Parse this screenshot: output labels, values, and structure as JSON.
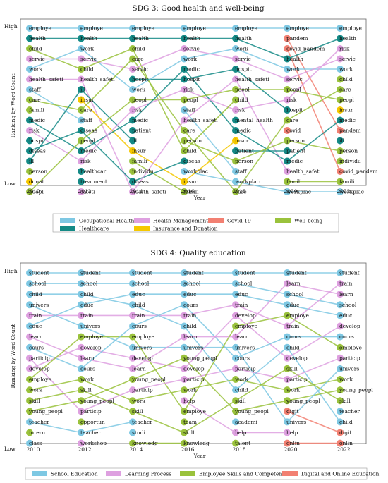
{
  "chart_data": [
    {
      "type": "bump",
      "title": "SDG 3: Good health and well-being",
      "xlabel": "Year",
      "ylabel": "Ranking by Word Count",
      "ytop": "High",
      "ybottom": "Low",
      "years": [
        "2010",
        "2012",
        "2014",
        "2016",
        "2018",
        "2020",
        "2022"
      ],
      "legend_position": "bottom",
      "series": [
        {
          "name": "Occupational Health",
          "color": "#7ec8e3"
        },
        {
          "name": "Healthcare",
          "color": "#148a86"
        },
        {
          "name": "Covid-19",
          "color": "#f28072"
        },
        {
          "name": "Insurance and Donation",
          "color": "#f5c800"
        },
        {
          "name": "Health Management",
          "color": "#dea0e0"
        },
        {
          "name": "Well-being",
          "color": "#9ac23c"
        }
      ],
      "columns": [
        [
          [
            "employe",
            0
          ],
          [
            "health",
            1
          ],
          [
            "child",
            5
          ],
          [
            "servic",
            4
          ],
          [
            "work",
            0
          ],
          [
            "health_safeti",
            4
          ],
          [
            "staff",
            0
          ],
          [
            "care",
            5
          ],
          [
            "famili",
            5
          ],
          [
            "medic",
            1
          ],
          [
            "risk",
            4
          ],
          [
            "hospit",
            1
          ],
          [
            "diseas",
            1
          ],
          [
            "ill",
            1
          ],
          [
            "person",
            5
          ],
          [
            "donat",
            3
          ],
          [
            "peopl",
            5
          ]
        ],
        [
          [
            "employe",
            0
          ],
          [
            "health",
            1
          ],
          [
            "work",
            0
          ],
          [
            "servic",
            4
          ],
          [
            "child",
            5
          ],
          [
            "health_safeti",
            4
          ],
          [
            "ill",
            1
          ],
          [
            "insur",
            3
          ],
          [
            "care",
            5
          ],
          [
            "staff",
            0
          ],
          [
            "diseas",
            1
          ],
          [
            "peopl",
            5
          ],
          [
            "medic",
            1
          ],
          [
            "risk",
            4
          ],
          [
            "healthcar",
            1
          ],
          [
            "treatment",
            1
          ],
          [
            "safeti",
            4
          ]
        ],
        [
          [
            "employe",
            0
          ],
          [
            "health",
            1
          ],
          [
            "child",
            5
          ],
          [
            "care",
            5
          ],
          [
            "servic",
            4
          ],
          [
            "hospit",
            1
          ],
          [
            "work",
            0
          ],
          [
            "peopl",
            5
          ],
          [
            "risk",
            4
          ],
          [
            "medic",
            1
          ],
          [
            "patient",
            1
          ],
          [
            "ill",
            1
          ],
          [
            "insur",
            3
          ],
          [
            "famili",
            5
          ],
          [
            "individu",
            5
          ],
          [
            "diseas",
            1
          ],
          [
            "health_safeti",
            4
          ]
        ],
        [
          [
            "employe",
            0
          ],
          [
            "health",
            1
          ],
          [
            "servic",
            4
          ],
          [
            "work",
            0
          ],
          [
            "medic",
            1
          ],
          [
            "hospit",
            1
          ],
          [
            "risk",
            4
          ],
          [
            "peopl",
            5
          ],
          [
            "staff",
            0
          ],
          [
            "health_safeti",
            4
          ],
          [
            "care",
            5
          ],
          [
            "person",
            5
          ],
          [
            "child",
            5
          ],
          [
            "diseas",
            1
          ],
          [
            "workplac",
            0
          ],
          [
            "insur",
            3
          ],
          [
            "famili",
            5
          ]
        ],
        [
          [
            "employe",
            0
          ],
          [
            "health",
            1
          ],
          [
            "work",
            0
          ],
          [
            "servic",
            4
          ],
          [
            "hospit",
            1
          ],
          [
            "health_safeti",
            4
          ],
          [
            "peopl",
            5
          ],
          [
            "child",
            5
          ],
          [
            "risk",
            4
          ],
          [
            "mental_health",
            1
          ],
          [
            "medic",
            1
          ],
          [
            "insur",
            3
          ],
          [
            "patient",
            1
          ],
          [
            "person",
            5
          ],
          [
            "staff",
            0
          ],
          [
            "workplac",
            0
          ],
          [
            "care",
            5
          ]
        ],
        [
          [
            "employe",
            0
          ],
          [
            "pandem",
            2
          ],
          [
            "covid_pandem",
            2
          ],
          [
            "health",
            1
          ],
          [
            "work",
            0
          ],
          [
            "servic",
            4
          ],
          [
            "peopl",
            5
          ],
          [
            "risk",
            4
          ],
          [
            "hospit",
            1
          ],
          [
            "care",
            5
          ],
          [
            "covid",
            2
          ],
          [
            "person",
            5
          ],
          [
            "patient",
            1
          ],
          [
            "medic",
            1
          ],
          [
            "health_safeti",
            4
          ],
          [
            "famili",
            5
          ],
          [
            "workplac",
            0
          ]
        ],
        [
          [
            "employe",
            0
          ],
          [
            "health",
            1
          ],
          [
            "risk",
            4
          ],
          [
            "servic",
            4
          ],
          [
            "work",
            0
          ],
          [
            "child",
            5
          ],
          [
            "care",
            5
          ],
          [
            "peopl",
            5
          ],
          [
            "insur",
            3
          ],
          [
            "medic",
            1
          ],
          [
            "pandem",
            2
          ],
          [
            "ill",
            1
          ],
          [
            "person",
            5
          ],
          [
            "individu",
            5
          ],
          [
            "covid_pandem",
            2
          ],
          [
            "famili",
            5
          ],
          [
            "workplac",
            0
          ]
        ]
      ]
    },
    {
      "type": "bump",
      "title": "SDG 4: Quality education",
      "xlabel": "Year",
      "ylabel": "Ranking by Word Count",
      "ytop": "High",
      "ybottom": "Low",
      "years": [
        "2010",
        "2012",
        "2014",
        "2016",
        "2018",
        "2020",
        "2022"
      ],
      "legend_position": "bottom",
      "series": [
        {
          "name": "School Education",
          "color": "#7ec8e3"
        },
        {
          "name": "Learning Process",
          "color": "#dea0e0"
        },
        {
          "name": "Employee Skills and Competence",
          "color": "#9ac23c"
        },
        {
          "name": "Digital and Online Education",
          "color": "#f28072"
        }
      ],
      "columns": [
        [
          [
            "student",
            0
          ],
          [
            "school",
            0
          ],
          [
            "child",
            0
          ],
          [
            "univers",
            0
          ],
          [
            "train",
            1
          ],
          [
            "educ",
            0
          ],
          [
            "learn",
            1
          ],
          [
            "cours",
            0
          ],
          [
            "particip",
            1
          ],
          [
            "develop",
            1
          ],
          [
            "employe",
            2
          ],
          [
            "work",
            2
          ],
          [
            "skill",
            2
          ],
          [
            "young_peopl",
            2
          ],
          [
            "teacher",
            0
          ],
          [
            "intern",
            2
          ],
          [
            "class",
            0
          ]
        ],
        [
          [
            "student",
            0
          ],
          [
            "school",
            0
          ],
          [
            "child",
            0
          ],
          [
            "educ",
            0
          ],
          [
            "train",
            1
          ],
          [
            "univers",
            0
          ],
          [
            "employe",
            2
          ],
          [
            "develop",
            1
          ],
          [
            "learn",
            1
          ],
          [
            "cours",
            0
          ],
          [
            "work",
            2
          ],
          [
            "skill",
            2
          ],
          [
            "young_peopl",
            2
          ],
          [
            "particip",
            1
          ],
          [
            "opportun",
            2
          ],
          [
            "teacher",
            0
          ],
          [
            "workshop",
            1
          ]
        ],
        [
          [
            "student",
            0
          ],
          [
            "school",
            0
          ],
          [
            "educ",
            0
          ],
          [
            "child",
            0
          ],
          [
            "train",
            1
          ],
          [
            "cours",
            0
          ],
          [
            "employe",
            2
          ],
          [
            "univers",
            0
          ],
          [
            "develop",
            1
          ],
          [
            "learn",
            1
          ],
          [
            "young_peopl",
            2
          ],
          [
            "particip",
            1
          ],
          [
            "work",
            2
          ],
          [
            "skill",
            2
          ],
          [
            "teacher",
            0
          ],
          [
            "studi",
            0
          ],
          [
            "knowledg",
            2
          ]
        ],
        [
          [
            "student",
            0
          ],
          [
            "school",
            0
          ],
          [
            "educ",
            0
          ],
          [
            "cours",
            0
          ],
          [
            "train",
            1
          ],
          [
            "child",
            0
          ],
          [
            "learn",
            1
          ],
          [
            "univers",
            0
          ],
          [
            "young_peopl",
            2
          ],
          [
            "develop",
            1
          ],
          [
            "particip",
            1
          ],
          [
            "work",
            2
          ],
          [
            "help",
            1
          ],
          [
            "employe",
            2
          ],
          [
            "team",
            2
          ],
          [
            "skill",
            2
          ],
          [
            "knowledg",
            2
          ]
        ],
        [
          [
            "student",
            0
          ],
          [
            "school",
            0
          ],
          [
            "educ",
            0
          ],
          [
            "train",
            1
          ],
          [
            "develop",
            1
          ],
          [
            "employe",
            2
          ],
          [
            "learn",
            1
          ],
          [
            "univers",
            0
          ],
          [
            "cours",
            0
          ],
          [
            "particip",
            1
          ],
          [
            "work",
            2
          ],
          [
            "child",
            0
          ],
          [
            "skill",
            2
          ],
          [
            "young_peopl",
            2
          ],
          [
            "academi",
            0
          ],
          [
            "help",
            1
          ],
          [
            "talent",
            2
          ]
        ],
        [
          [
            "student",
            0
          ],
          [
            "learn",
            1
          ],
          [
            "school",
            0
          ],
          [
            "educ",
            0
          ],
          [
            "employe",
            2
          ],
          [
            "train",
            1
          ],
          [
            "cours",
            0
          ],
          [
            "child",
            0
          ],
          [
            "develop",
            1
          ],
          [
            "skill",
            2
          ],
          [
            "particip",
            1
          ],
          [
            "work",
            2
          ],
          [
            "young_peopl",
            2
          ],
          [
            "digit",
            3
          ],
          [
            "univers",
            0
          ],
          [
            "help",
            1
          ],
          [
            "onlin",
            3
          ]
        ],
        [
          [
            "student",
            0
          ],
          [
            "train",
            1
          ],
          [
            "learn",
            1
          ],
          [
            "school",
            0
          ],
          [
            "educ",
            0
          ],
          [
            "develop",
            1
          ],
          [
            "cours",
            0
          ],
          [
            "employe",
            2
          ],
          [
            "particip",
            1
          ],
          [
            "univers",
            0
          ],
          [
            "work",
            2
          ],
          [
            "young_peopl",
            2
          ],
          [
            "skill",
            2
          ],
          [
            "teacher",
            0
          ],
          [
            "child",
            0
          ],
          [
            "digit",
            3
          ],
          [
            "onlin",
            3
          ]
        ]
      ]
    }
  ]
}
